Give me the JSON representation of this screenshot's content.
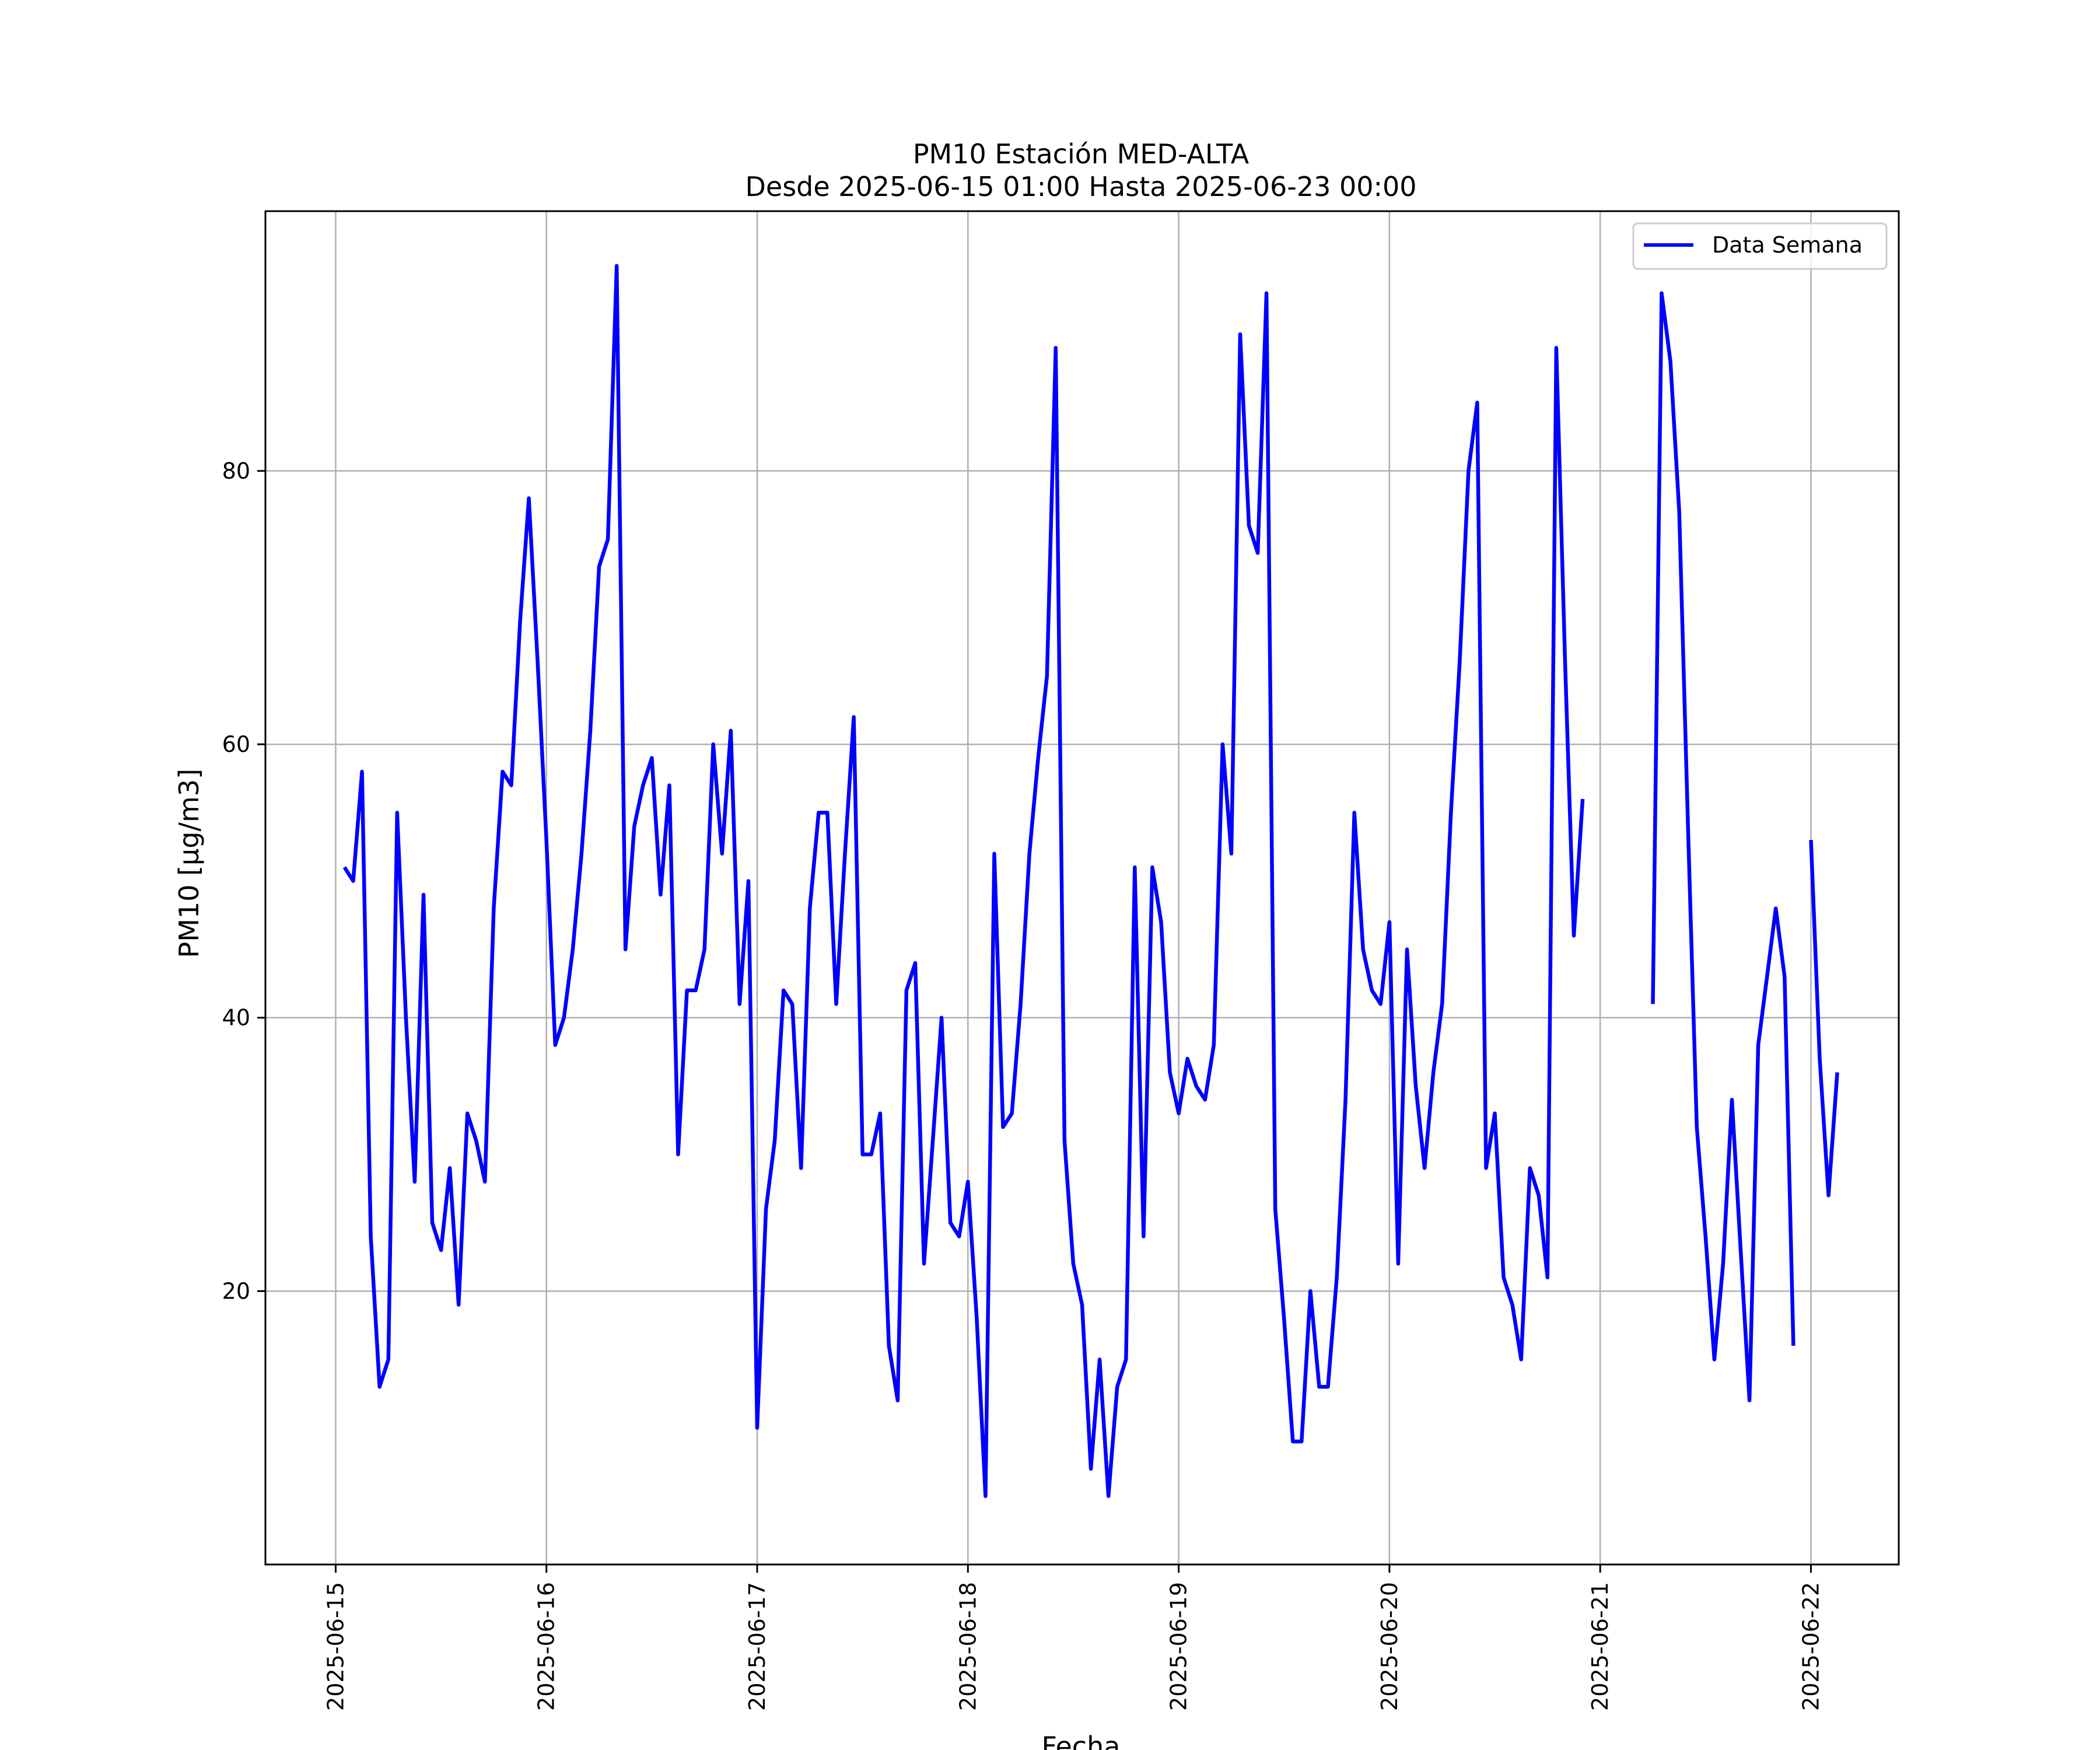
{
  "chart_data": {
    "type": "line",
    "title": "PM10 Estación MED-ALTA",
    "subtitle": "Desde 2025-06-15 01:00 Hasta 2025-06-23 00:00",
    "xlabel": "Fecha",
    "ylabel": "PM10 [μg/m3]",
    "xlim": [
      "2025-06-14 16:00",
      "2025-06-22 10:00"
    ],
    "ylim": [
      0,
      99
    ],
    "x_ticks": [
      "2025-06-15",
      "2025-06-16",
      "2025-06-17",
      "2025-06-18",
      "2025-06-19",
      "2025-06-20",
      "2025-06-21",
      "2025-06-22"
    ],
    "y_ticks": [
      20,
      40,
      60,
      80
    ],
    "grid": true,
    "legend_position": "top-right",
    "colors": {
      "line": "#0000ff",
      "grid": "#b0b0b0"
    },
    "series": [
      {
        "name": "Data Semana",
        "x": [
          "2025-06-15 01:00",
          "2025-06-15 02:00",
          "2025-06-15 03:00",
          "2025-06-15 04:00",
          "2025-06-15 05:00",
          "2025-06-15 06:00",
          "2025-06-15 07:00",
          "2025-06-15 08:00",
          "2025-06-15 09:00",
          "2025-06-15 10:00",
          "2025-06-15 11:00",
          "2025-06-15 12:00",
          "2025-06-15 13:00",
          "2025-06-15 14:00",
          "2025-06-15 15:00",
          "2025-06-15 16:00",
          "2025-06-15 17:00",
          "2025-06-15 18:00",
          "2025-06-15 19:00",
          "2025-06-15 20:00",
          "2025-06-15 21:00",
          "2025-06-15 22:00",
          "2025-06-15 23:00",
          "2025-06-16 00:00",
          "2025-06-16 01:00",
          "2025-06-16 02:00",
          "2025-06-16 03:00",
          "2025-06-16 04:00",
          "2025-06-16 05:00",
          "2025-06-16 06:00",
          "2025-06-16 07:00",
          "2025-06-16 08:00",
          "2025-06-16 09:00",
          "2025-06-16 10:00",
          "2025-06-16 11:00",
          "2025-06-16 12:00",
          "2025-06-16 13:00",
          "2025-06-16 14:00",
          "2025-06-16 15:00",
          "2025-06-16 16:00",
          "2025-06-16 17:00",
          "2025-06-16 18:00",
          "2025-06-16 19:00",
          "2025-06-16 20:00",
          "2025-06-16 21:00",
          "2025-06-16 22:00",
          "2025-06-16 23:00",
          "2025-06-17 00:00",
          "2025-06-17 01:00",
          "2025-06-17 02:00",
          "2025-06-17 03:00",
          "2025-06-17 04:00",
          "2025-06-17 05:00",
          "2025-06-17 06:00",
          "2025-06-17 07:00",
          "2025-06-17 08:00",
          "2025-06-17 09:00",
          "2025-06-17 10:00",
          "2025-06-17 11:00",
          "2025-06-17 12:00",
          "2025-06-17 13:00",
          "2025-06-17 14:00",
          "2025-06-17 15:00",
          "2025-06-17 16:00",
          "2025-06-17 17:00",
          "2025-06-17 18:00",
          "2025-06-17 19:00",
          "2025-06-17 20:00",
          "2025-06-17 21:00",
          "2025-06-17 22:00",
          "2025-06-17 23:00",
          "2025-06-18 00:00",
          "2025-06-18 01:00",
          "2025-06-18 02:00",
          "2025-06-18 03:00",
          "2025-06-18 04:00",
          "2025-06-18 05:00",
          "2025-06-18 06:00",
          "2025-06-18 07:00",
          "2025-06-18 08:00",
          "2025-06-18 09:00",
          "2025-06-18 10:00",
          "2025-06-18 11:00",
          "2025-06-18 12:00",
          "2025-06-18 13:00",
          "2025-06-18 14:00",
          "2025-06-18 15:00",
          "2025-06-18 16:00",
          "2025-06-18 17:00",
          "2025-06-18 18:00",
          "2025-06-18 19:00",
          "2025-06-18 20:00",
          "2025-06-18 21:00",
          "2025-06-18 22:00",
          "2025-06-18 23:00",
          "2025-06-19 00:00",
          "2025-06-19 01:00",
          "2025-06-19 02:00",
          "2025-06-19 03:00",
          "2025-06-19 04:00",
          "2025-06-19 05:00",
          "2025-06-19 06:00",
          "2025-06-19 07:00",
          "2025-06-19 08:00",
          "2025-06-19 09:00",
          "2025-06-19 10:00",
          "2025-06-19 11:00",
          "2025-06-19 12:00",
          "2025-06-19 13:00",
          "2025-06-19 14:00",
          "2025-06-19 15:00",
          "2025-06-19 16:00",
          "2025-06-19 17:00",
          "2025-06-19 18:00",
          "2025-06-19 19:00",
          "2025-06-19 20:00",
          "2025-06-19 21:00",
          "2025-06-19 22:00",
          "2025-06-19 23:00",
          "2025-06-20 00:00",
          "2025-06-20 01:00",
          "2025-06-20 02:00",
          "2025-06-20 03:00",
          "2025-06-20 04:00",
          "2025-06-20 05:00",
          "2025-06-20 06:00",
          "2025-06-20 07:00",
          "2025-06-20 08:00",
          "2025-06-20 09:00",
          "2025-06-20 10:00",
          "2025-06-20 11:00",
          "2025-06-20 12:00",
          "2025-06-20 13:00",
          "2025-06-20 14:00",
          "2025-06-20 15:00",
          "2025-06-20 16:00",
          "2025-06-20 17:00",
          "2025-06-20 18:00",
          "2025-06-20 19:00",
          "2025-06-20 20:00",
          "2025-06-20 21:00",
          "2025-06-20 22:00",
          "2025-06-20 23:00",
          "2025-06-21 00:00",
          "2025-06-21 01:00",
          "2025-06-21 02:00",
          "2025-06-21 03:00",
          "2025-06-21 04:00",
          "2025-06-21 05:00",
          "2025-06-21 06:00",
          "2025-06-21 07:00",
          "2025-06-21 08:00",
          "2025-06-21 09:00",
          "2025-06-21 10:00",
          "2025-06-21 11:00",
          "2025-06-21 12:00",
          "2025-06-21 13:00",
          "2025-06-21 14:00",
          "2025-06-21 15:00",
          "2025-06-21 16:00",
          "2025-06-21 17:00",
          "2025-06-21 18:00",
          "2025-06-21 19:00",
          "2025-06-21 20:00",
          "2025-06-21 21:00",
          "2025-06-21 22:00",
          "2025-06-21 23:00",
          "2025-06-22 00:00",
          "2025-06-22 01:00",
          "2025-06-22 02:00",
          "2025-06-22 03:00"
        ],
        "values": [
          51,
          50,
          58,
          24,
          13,
          15,
          55,
          40,
          28,
          49,
          25,
          23,
          29,
          19,
          33,
          31,
          28,
          48,
          58,
          57,
          69,
          78,
          66,
          53,
          38,
          40,
          45,
          52,
          61,
          73,
          75,
          95,
          45,
          54,
          57,
          59,
          49,
          57,
          30,
          42,
          42,
          45,
          60,
          52,
          61,
          41,
          50,
          10,
          26,
          31,
          42,
          41,
          29,
          48,
          55,
          55,
          41,
          52,
          62,
          30,
          30,
          33,
          16,
          12,
          42,
          44,
          22,
          31,
          40,
          25,
          24,
          28,
          18,
          5,
          52,
          32,
          33,
          41,
          52,
          59,
          65,
          89,
          31,
          22,
          19,
          7,
          15,
          5,
          13,
          15,
          51,
          24,
          51,
          47,
          36,
          33,
          37,
          35,
          34,
          38,
          60,
          52,
          90,
          76,
          74,
          93,
          26,
          18,
          9,
          9,
          20,
          13,
          13,
          21,
          34,
          55,
          45,
          42,
          41,
          47,
          22,
          45,
          35,
          29,
          36,
          41,
          55,
          66,
          80,
          85,
          29,
          33,
          21,
          19,
          15,
          29,
          27,
          21,
          89,
          66,
          46,
          56,
          null,
          null,
          null,
          null,
          null,
          null,
          null,
          41,
          93,
          88,
          77,
          54,
          32,
          24,
          15,
          22,
          34,
          23,
          12,
          38,
          43,
          48,
          43,
          16,
          null,
          53,
          37,
          27,
          36
        ]
      }
    ]
  }
}
